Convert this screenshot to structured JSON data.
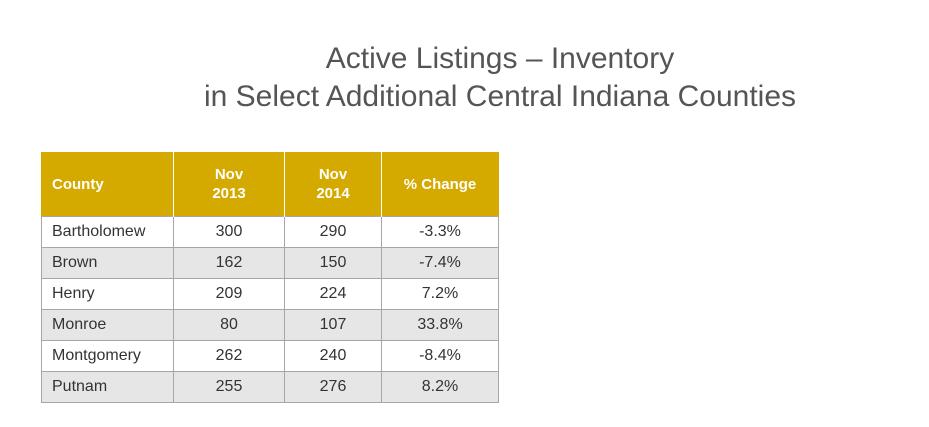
{
  "title": {
    "line1": "Active Listings – Inventory",
    "line2": "in Select Additional Central Indiana Counties"
  },
  "table": {
    "headers": {
      "county": "County",
      "nov2013_line1": "Nov",
      "nov2013_line2": "2013",
      "nov2014_line1": "Nov",
      "nov2014_line2": "2014",
      "change": "% Change"
    },
    "rows": [
      {
        "county": "Bartholomew",
        "nov2013": "300",
        "nov2014": "290",
        "change": "-3.3%"
      },
      {
        "county": "Brown",
        "nov2013": "162",
        "nov2014": "150",
        "change": "-7.4%"
      },
      {
        "county": "Henry",
        "nov2013": "209",
        "nov2014": "224",
        "change": "7.2%"
      },
      {
        "county": "Monroe",
        "nov2013": "80",
        "nov2014": "107",
        "change": "33.8%"
      },
      {
        "county": "Montgomery",
        "nov2013": "262",
        "nov2014": "240",
        "change": "-8.4%"
      },
      {
        "county": "Putnam",
        "nov2013": "255",
        "nov2014": "276",
        "change": "8.2%"
      }
    ]
  },
  "colors": {
    "header_bg": "#d4a900",
    "header_text": "#ffffff",
    "row_alt_bg": "#e6e6e6",
    "title_text": "#555555"
  }
}
